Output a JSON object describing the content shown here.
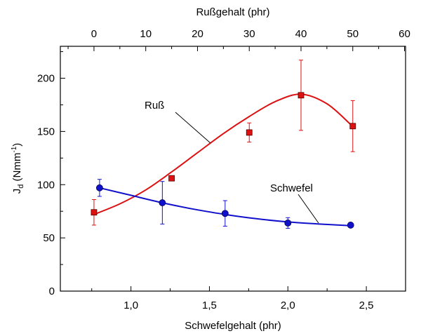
{
  "chart_data": {
    "type": "scatter",
    "x_bottom": {
      "label": "Schwefelgehalt (phr)",
      "range": [
        0.55,
        2.75
      ],
      "ticks": [
        1.0,
        1.5,
        2.0,
        2.5
      ],
      "tick_labels": [
        "1,0",
        "1,5",
        "2,0",
        "2,5"
      ]
    },
    "x_top": {
      "label": "Rußgehalt (phr)",
      "range": [
        -6.5,
        60.2
      ],
      "ticks": [
        0,
        10,
        20,
        30,
        40,
        50,
        60
      ],
      "tick_labels": [
        "0",
        "10",
        "20",
        "30",
        "40",
        "50",
        "60"
      ]
    },
    "y": {
      "label_main": "J",
      "label_sub": "d",
      "label_unit_pre": " (Nmm",
      "label_sup": "-1",
      "label_unit_post": ")",
      "range": [
        0,
        230
      ],
      "ticks": [
        0,
        50,
        100,
        150,
        200
      ],
      "tick_labels": [
        "0",
        "50",
        "100",
        "150",
        "200"
      ]
    },
    "grid": false,
    "series": [
      {
        "name": "Ruß",
        "axis": "top",
        "color": "#dd1111",
        "marker": "square",
        "points": [
          {
            "x": 0,
            "y": 74,
            "err": 12
          },
          {
            "x": 15,
            "y": 106,
            "err": 0
          },
          {
            "x": 30,
            "y": 149,
            "err": 9
          },
          {
            "x": 40,
            "y": 184,
            "err": 33
          },
          {
            "x": 50,
            "y": 155,
            "err": 24
          }
        ],
        "curve": [
          [
            0,
            72
          ],
          [
            5,
            82
          ],
          [
            10,
            95
          ],
          [
            15,
            112
          ],
          [
            20,
            130
          ],
          [
            25,
            148
          ],
          [
            30,
            164
          ],
          [
            35,
            178
          ],
          [
            40,
            185
          ],
          [
            45,
            176
          ],
          [
            49.5,
            157
          ]
        ]
      },
      {
        "name": "Schwefel",
        "axis": "bottom",
        "color": "#1111cc",
        "marker": "circle",
        "points": [
          {
            "x": 0.8,
            "y": 97,
            "err": 8
          },
          {
            "x": 1.2,
            "y": 83,
            "err": 20
          },
          {
            "x": 1.6,
            "y": 73,
            "err": 12
          },
          {
            "x": 2.0,
            "y": 64,
            "err": 5
          },
          {
            "x": 2.4,
            "y": 62,
            "err": 0
          }
        ],
        "curve": [
          [
            0.8,
            97
          ],
          [
            1.0,
            90
          ],
          [
            1.2,
            83
          ],
          [
            1.4,
            77
          ],
          [
            1.6,
            72
          ],
          [
            1.8,
            68
          ],
          [
            2.0,
            65
          ],
          [
            2.2,
            63
          ],
          [
            2.4,
            61.5
          ]
        ]
      }
    ]
  }
}
